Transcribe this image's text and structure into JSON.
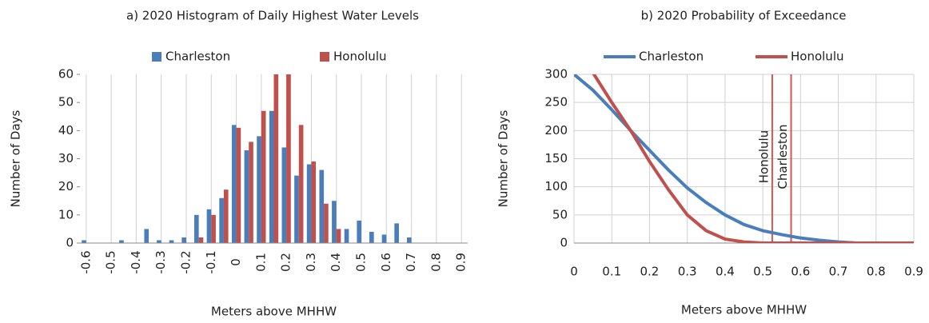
{
  "chart_data": [
    {
      "type": "bar",
      "title": "a) 2020 Histogram of Daily Highest Water Levels",
      "x_label": "Meters above MHHW",
      "y_label": "Number of Days",
      "categories": [
        "-0.6",
        null,
        "-0.5",
        null,
        "-0.4",
        null,
        "-0.3",
        null,
        "-0.2",
        null,
        "-0.1",
        null,
        "0",
        null,
        "0.1",
        null,
        "0.2",
        null,
        "0.3",
        null,
        "0.4",
        null,
        "0.5",
        null,
        "0.6",
        null,
        "0.7",
        null,
        "0.8",
        null,
        "0.9"
      ],
      "series": [
        {
          "name": "Charleston",
          "color": "#4a7ebb",
          "values": [
            1,
            0,
            0,
            1,
            0,
            5,
            1,
            1,
            2,
            10,
            12,
            16,
            42,
            33,
            38,
            47,
            34,
            24,
            28,
            26,
            15,
            5,
            8,
            4,
            3,
            7,
            2,
            0,
            0,
            0,
            0
          ]
        },
        {
          "name": "Honolulu",
          "color": "#c0504d",
          "values": [
            0,
            0,
            0,
            0,
            0,
            0,
            0,
            0,
            0,
            2,
            10,
            19,
            41,
            36,
            47,
            64,
            62,
            42,
            29,
            14,
            5,
            0,
            0,
            0,
            0,
            0,
            0,
            0,
            0,
            0,
            0
          ]
        }
      ],
      "ylim": [
        0,
        60
      ],
      "yticks": [
        0,
        10,
        20,
        30,
        40,
        50,
        60
      ],
      "grid": true
    },
    {
      "type": "line",
      "title": "b) 2020 Probability of Exceedance",
      "x_label": "Meters above MHHW",
      "y_label": "Number of Days",
      "x": [
        0,
        0.05,
        0.1,
        0.15,
        0.2,
        0.25,
        0.3,
        0.35,
        0.4,
        0.45,
        0.5,
        0.55,
        0.6,
        0.65,
        0.7,
        0.75,
        0.8,
        0.85,
        0.9
      ],
      "series": [
        {
          "name": "Charleston",
          "color": "#4a7ebb",
          "values": [
            300,
            272,
            237,
            200,
            165,
            130,
            98,
            72,
            50,
            33,
            22,
            15,
            9,
            5,
            2,
            0,
            0,
            0,
            0
          ]
        },
        {
          "name": "Honolulu",
          "color": "#c0504d",
          "values": [
            null,
            303,
            250,
            200,
            145,
            95,
            50,
            22,
            7,
            2,
            0,
            0,
            0,
            0,
            0,
            0,
            0,
            0,
            0
          ]
        }
      ],
      "markers": [
        {
          "label": "Honolulu",
          "x": 0.525
        },
        {
          "label": "Charleston",
          "x": 0.575
        }
      ],
      "marker_color": "#d9534f",
      "xlim": [
        0,
        0.9
      ],
      "xticks": [
        0,
        0.1,
        0.2,
        0.3,
        0.4,
        0.5,
        0.6,
        0.7,
        0.8,
        0.9
      ],
      "ylim": [
        0,
        300
      ],
      "yticks": [
        0,
        50,
        100,
        150,
        200,
        250,
        300
      ],
      "grid": true
    }
  ]
}
